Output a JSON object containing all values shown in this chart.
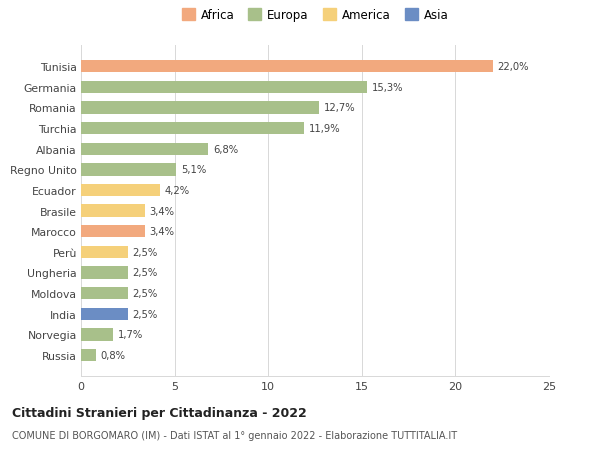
{
  "countries": [
    "Tunisia",
    "Germania",
    "Romania",
    "Turchia",
    "Albania",
    "Regno Unito",
    "Ecuador",
    "Brasile",
    "Marocco",
    "Perù",
    "Ungheria",
    "Moldova",
    "India",
    "Norvegia",
    "Russia"
  ],
  "values": [
    22.0,
    15.3,
    12.7,
    11.9,
    6.8,
    5.1,
    4.2,
    3.4,
    3.4,
    2.5,
    2.5,
    2.5,
    2.5,
    1.7,
    0.8
  ],
  "labels": [
    "22,0%",
    "15,3%",
    "12,7%",
    "11,9%",
    "6,8%",
    "5,1%",
    "4,2%",
    "3,4%",
    "3,4%",
    "2,5%",
    "2,5%",
    "2,5%",
    "2,5%",
    "1,7%",
    "0,8%"
  ],
  "continents": [
    "Africa",
    "Europa",
    "Europa",
    "Europa",
    "Europa",
    "Europa",
    "America",
    "America",
    "Africa",
    "America",
    "Europa",
    "Europa",
    "Asia",
    "Europa",
    "Europa"
  ],
  "colors": {
    "Africa": "#F2A97E",
    "Europa": "#A8C08A",
    "America": "#F5D07A",
    "Asia": "#6B8DC4"
  },
  "legend_order": [
    "Africa",
    "Europa",
    "America",
    "Asia"
  ],
  "xlim": [
    0,
    25
  ],
  "xticks": [
    0,
    5,
    10,
    15,
    20,
    25
  ],
  "title": "Cittadini Stranieri per Cittadinanza - 2022",
  "subtitle": "COMUNE DI BORGOMARO (IM) - Dati ISTAT al 1° gennaio 2022 - Elaborazione TUTTITALIA.IT",
  "background_color": "#ffffff",
  "grid_color": "#d8d8d8"
}
